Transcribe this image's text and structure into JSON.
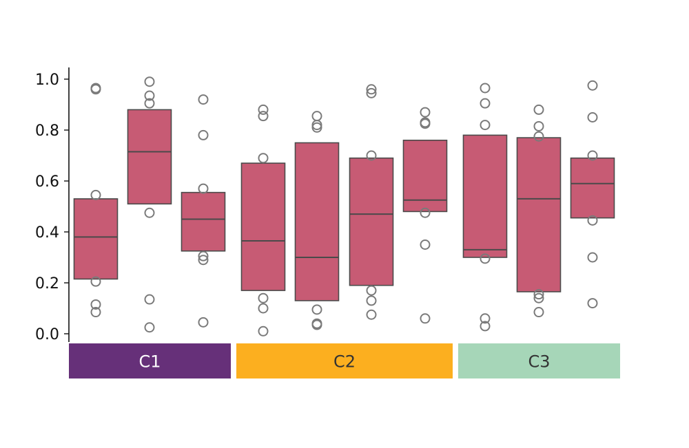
{
  "chart_data": {
    "type": "box",
    "ylim": [
      0.0,
      1.0
    ],
    "yticks": [
      0.0,
      0.2,
      0.4,
      0.6,
      0.8,
      1.0
    ],
    "ytick_labels": [
      "0.0",
      "0.2",
      "0.4",
      "0.6",
      "0.8",
      "1.0"
    ],
    "box_color": "#c75b74",
    "edge_color": "#4a4a4a",
    "outlier_color": "#7a7a7a",
    "groups": [
      {
        "label": "C1",
        "color": "#663079",
        "text_color": "#ffffff",
        "boxes": [
          {
            "q1": 0.215,
            "median": 0.38,
            "q3": 0.53,
            "outliers": [
              0.965,
              0.96,
              0.545,
              0.205,
              0.115,
              0.085
            ]
          },
          {
            "q1": 0.51,
            "median": 0.715,
            "q3": 0.88,
            "outliers": [
              0.99,
              0.935,
              0.905,
              0.475,
              0.135,
              0.025
            ]
          },
          {
            "q1": 0.325,
            "median": 0.45,
            "q3": 0.555,
            "outliers": [
              0.92,
              0.78,
              0.57,
              0.305,
              0.29,
              0.045
            ]
          }
        ]
      },
      {
        "label": "C2",
        "color": "#fcaf1f",
        "text_color": "#333333",
        "boxes": [
          {
            "q1": 0.17,
            "median": 0.365,
            "q3": 0.67,
            "outliers": [
              0.88,
              0.855,
              0.69,
              0.14,
              0.1,
              0.01
            ]
          },
          {
            "q1": 0.13,
            "median": 0.3,
            "q3": 0.75,
            "outliers": [
              0.855,
              0.82,
              0.81,
              0.095,
              0.04,
              0.035
            ]
          },
          {
            "q1": 0.19,
            "median": 0.47,
            "q3": 0.69,
            "outliers": [
              0.96,
              0.945,
              0.7,
              0.17,
              0.13,
              0.075
            ]
          },
          {
            "q1": 0.48,
            "median": 0.525,
            "q3": 0.76,
            "outliers": [
              0.87,
              0.83,
              0.825,
              0.475,
              0.35,
              0.06
            ]
          }
        ]
      },
      {
        "label": "C3",
        "color": "#a6d6b8",
        "text_color": "#333333",
        "boxes": [
          {
            "q1": 0.3,
            "median": 0.33,
            "q3": 0.78,
            "outliers": [
              0.965,
              0.905,
              0.82,
              0.295,
              0.06,
              0.03
            ]
          },
          {
            "q1": 0.165,
            "median": 0.53,
            "q3": 0.77,
            "outliers": [
              0.88,
              0.815,
              0.775,
              0.155,
              0.14,
              0.085
            ]
          },
          {
            "q1": 0.455,
            "median": 0.59,
            "q3": 0.69,
            "outliers": [
              0.975,
              0.85,
              0.7,
              0.445,
              0.3,
              0.12
            ]
          }
        ]
      }
    ]
  }
}
